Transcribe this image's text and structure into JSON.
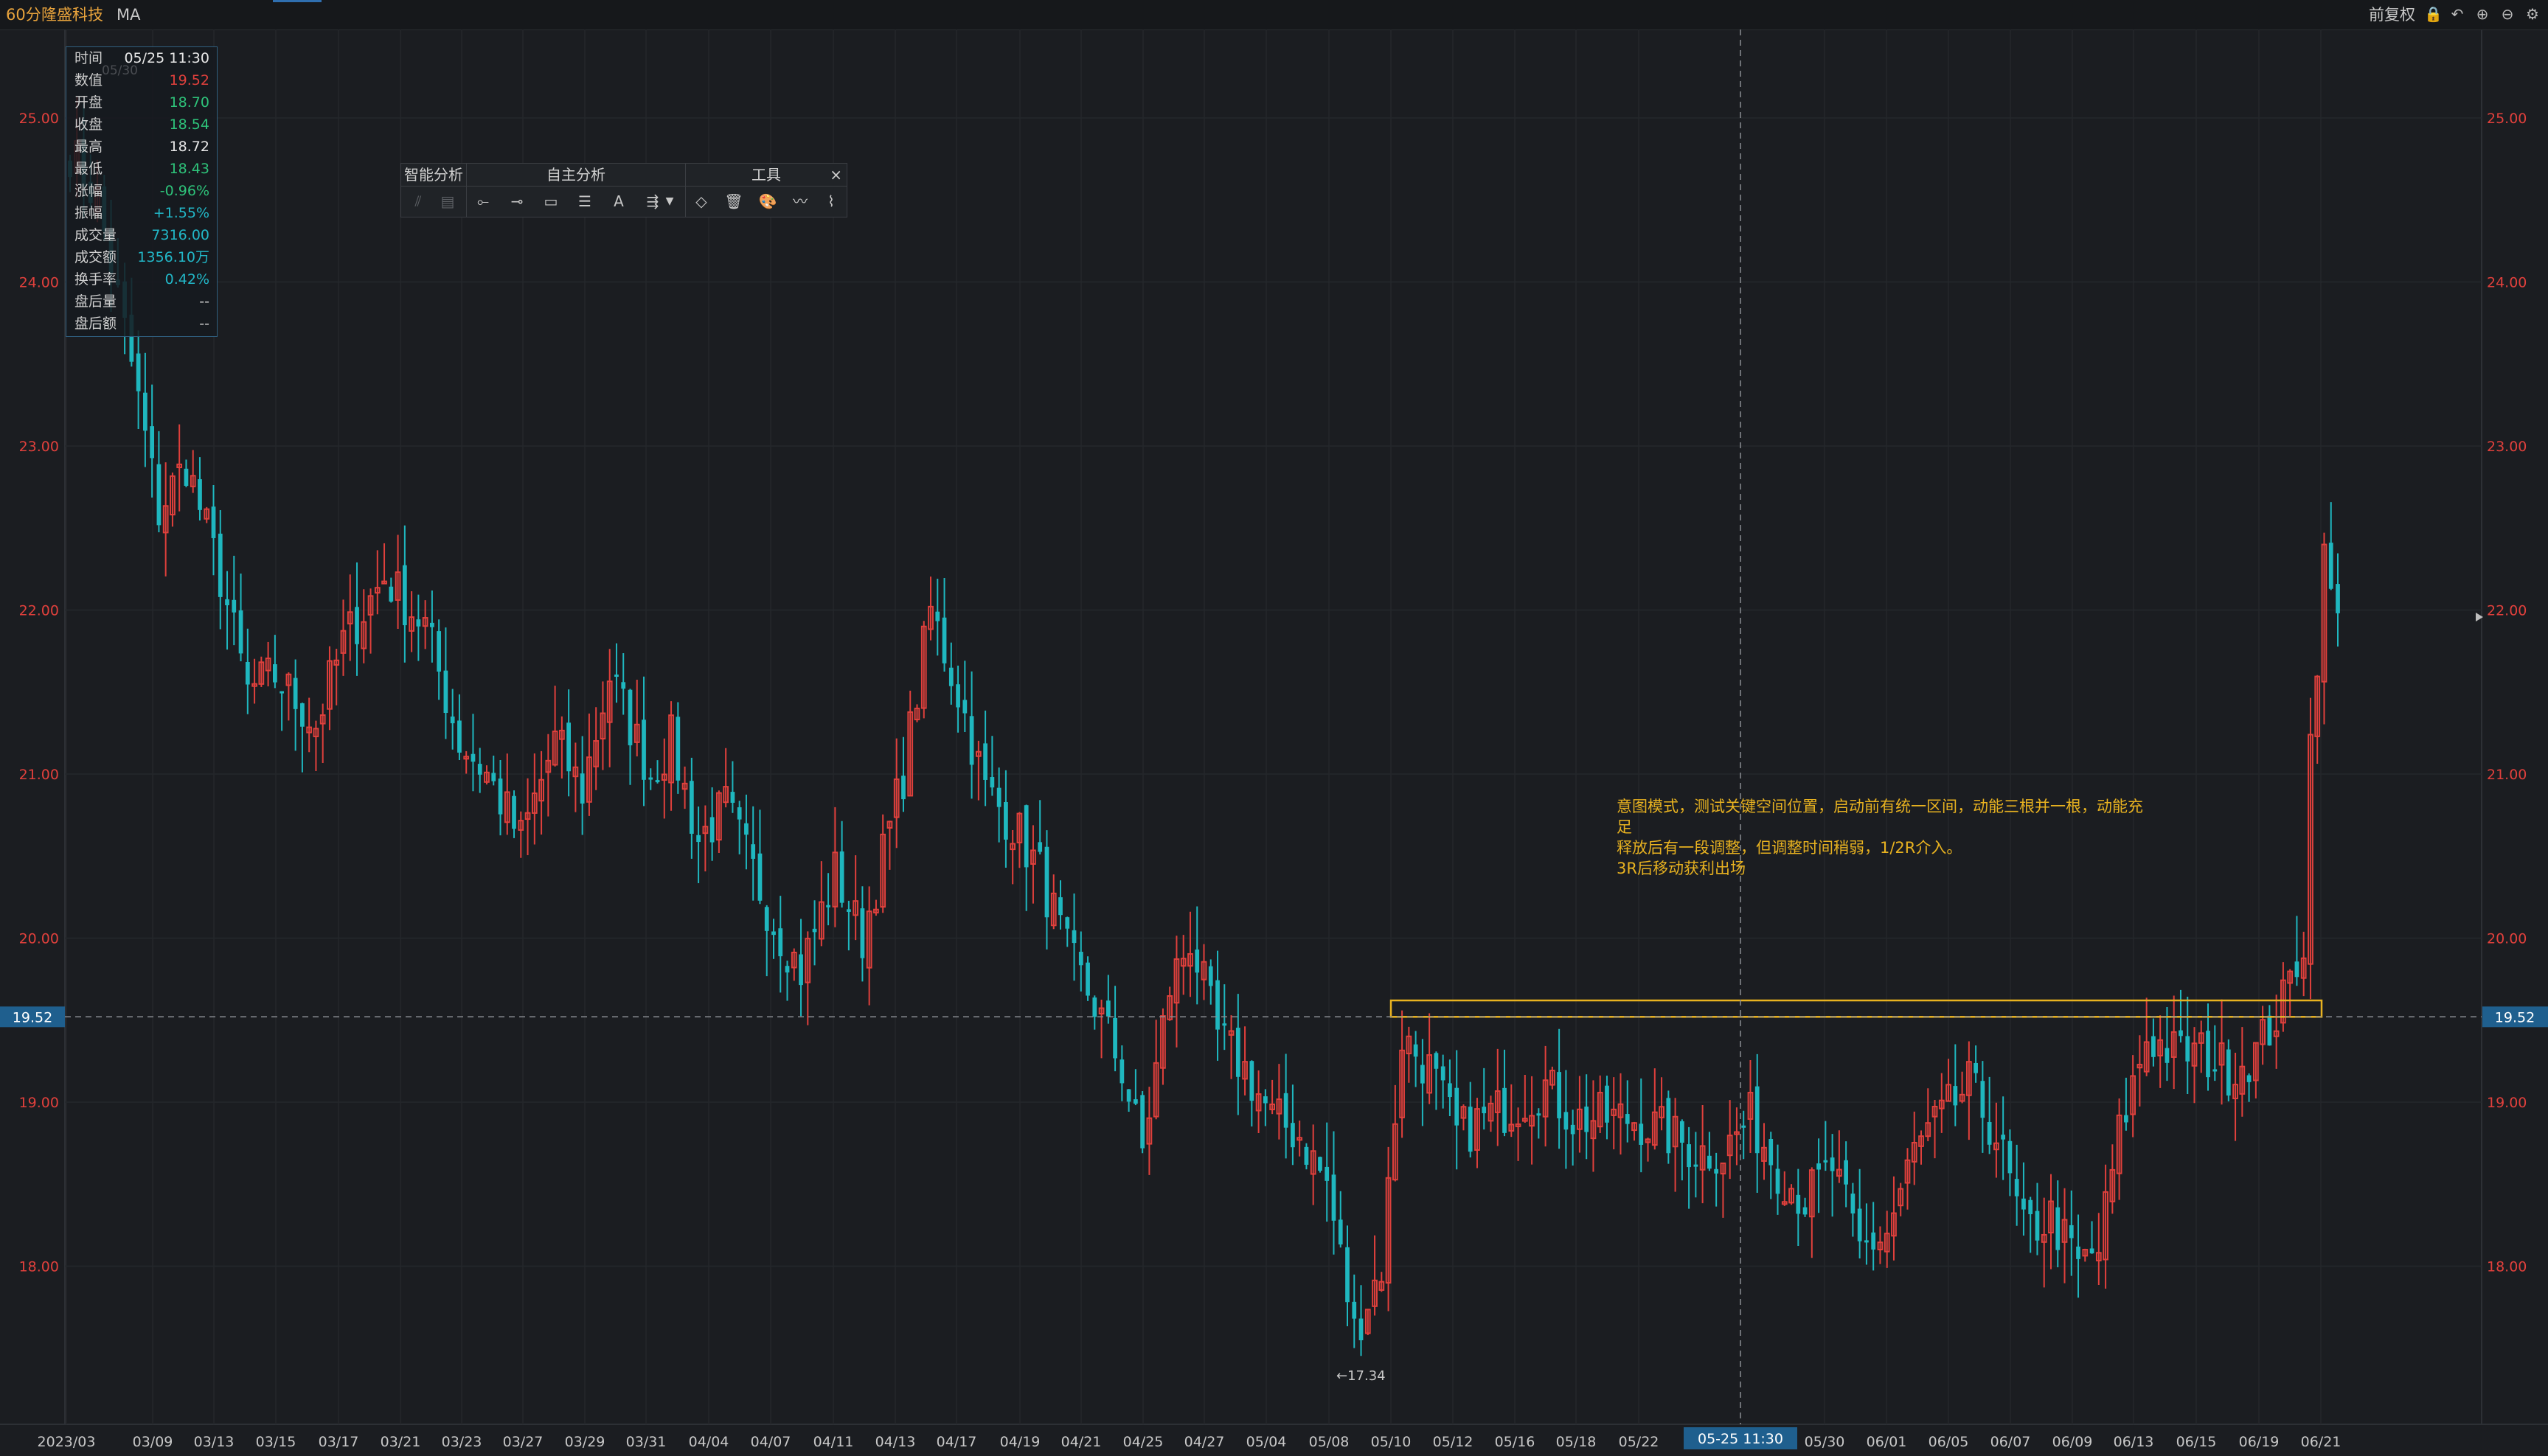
{
  "header": {
    "interval": "60分",
    "stock_name": "隆盛科技",
    "indicator": "MA",
    "fq_mode": "前复权",
    "icons": [
      "lock-icon",
      "undo-icon",
      "zoom-in-icon",
      "zoom-out-icon",
      "gear-icon"
    ]
  },
  "info_panel": {
    "rows": [
      {
        "label": "时间",
        "value": "05/25 11:30",
        "color": "#e8e8e8"
      },
      {
        "label": "数值",
        "value": "19.52",
        "color": "#e0403c"
      },
      {
        "label": "开盘",
        "value": "18.70",
        "color": "#2ec37a"
      },
      {
        "label": "收盘",
        "value": "18.54",
        "color": "#2ec37a"
      },
      {
        "label": "最高",
        "value": "18.72",
        "color": "#e8e8e8"
      },
      {
        "label": "最低",
        "value": "18.43",
        "color": "#2ec37a"
      },
      {
        "label": "涨幅",
        "value": "-0.96%",
        "color": "#2ec37a"
      },
      {
        "label": "振幅",
        "value": "+1.55%",
        "color": "#22b8c8"
      },
      {
        "label": "成交量",
        "value": "7316.00",
        "color": "#22b8c8"
      },
      {
        "label": "成交额",
        "value": "1356.10万",
        "color": "#22b8c8"
      },
      {
        "label": "换手率",
        "value": "0.42%",
        "color": "#22b8c8"
      },
      {
        "label": "盘后量",
        "value": "--",
        "color": "#cfcfcf"
      },
      {
        "label": "盘后额",
        "value": "--",
        "color": "#cfcfcf"
      }
    ],
    "ghost": "05/30"
  },
  "toolbar": {
    "groups": [
      {
        "title": "智能分析"
      },
      {
        "title": "自主分析"
      },
      {
        "title": "工具"
      }
    ],
    "close": "×"
  },
  "annotation": {
    "lines": [
      "意图模式，测试关键空间位置，启动前有统一区间，动能三根并一根，动能充",
      "足",
      "释放后有一段调整，但调整时间稍弱，1/2R介入。",
      "3R后移动获利出场"
    ]
  },
  "chart_data": {
    "type": "candlestick",
    "y_ticks": [
      "25.00",
      "24.00",
      "23.00",
      "22.00",
      "21.00",
      "20.00",
      "19.00",
      "18.00"
    ],
    "x_ticks": [
      "2023/03",
      "03/09",
      "03/13",
      "03/15",
      "03/17",
      "03/21",
      "03/23",
      "03/27",
      "03/29",
      "03/31",
      "04/04",
      "04/07",
      "04/11",
      "04/13",
      "04/17",
      "04/19",
      "04/21",
      "04/25",
      "04/27",
      "05/04",
      "05/08",
      "05/10",
      "05/12",
      "05/16",
      "05/18",
      "05/22",
      "05/30",
      "06/01",
      "06/05",
      "06/07",
      "06/09",
      "06/13",
      "06/15",
      "06/19",
      "06/21"
    ],
    "ylim": [
      17.0,
      25.5
    ],
    "crosshair": {
      "price": "19.52",
      "time": "05-25 11:30"
    },
    "low_marker": "←17.34",
    "zone": [
      19.52,
      19.62
    ],
    "up_color": "#e0403c",
    "down_color": "#1fb7bf",
    "anchors": [
      [
        0,
        24.8
      ],
      [
        4,
        24.5
      ],
      [
        9,
        23.5
      ],
      [
        13,
        22.6
      ],
      [
        17,
        22.9
      ],
      [
        22,
        22.2
      ],
      [
        26,
        21.5
      ],
      [
        30,
        21.6
      ],
      [
        36,
        21.3
      ],
      [
        40,
        21.8
      ],
      [
        46,
        22.2
      ],
      [
        52,
        21.9
      ],
      [
        57,
        21.2
      ],
      [
        61,
        21.0
      ],
      [
        66,
        20.6
      ],
      [
        71,
        21.2
      ],
      [
        75,
        20.9
      ],
      [
        79,
        21.6
      ],
      [
        85,
        21.0
      ],
      [
        88,
        21.2
      ],
      [
        92,
        20.6
      ],
      [
        96,
        20.8
      ],
      [
        99,
        20.5
      ],
      [
        103,
        20.1
      ],
      [
        107,
        19.8
      ],
      [
        112,
        20.4
      ],
      [
        116,
        20.0
      ],
      [
        122,
        21.0
      ],
      [
        126,
        22.0
      ],
      [
        130,
        21.5
      ],
      [
        134,
        20.9
      ],
      [
        138,
        20.7
      ],
      [
        142,
        20.4
      ],
      [
        146,
        19.9
      ],
      [
        150,
        19.6
      ],
      [
        154,
        19.2
      ],
      [
        157,
        18.7
      ],
      [
        161,
        19.7
      ],
      [
        164,
        20.0
      ],
      [
        168,
        19.4
      ],
      [
        172,
        19.2
      ],
      [
        176,
        18.9
      ],
      [
        180,
        18.8
      ],
      [
        184,
        18.5
      ],
      [
        188,
        17.6
      ],
      [
        192,
        18.0
      ],
      [
        195,
        19.4
      ],
      [
        199,
        19.2
      ],
      [
        203,
        18.8
      ],
      [
        207,
        18.9
      ],
      [
        212,
        19.0
      ],
      [
        216,
        19.1
      ],
      [
        220,
        18.9
      ],
      [
        225,
        18.9
      ],
      [
        229,
        18.9
      ],
      [
        234,
        18.8
      ],
      [
        238,
        18.7
      ],
      [
        242,
        18.7
      ],
      [
        246,
        18.9
      ],
      [
        250,
        18.6
      ],
      [
        254,
        18.4
      ],
      [
        258,
        18.6
      ],
      [
        262,
        18.1
      ],
      [
        266,
        18.2
      ],
      [
        270,
        18.7
      ],
      [
        274,
        18.9
      ],
      [
        278,
        19.1
      ],
      [
        282,
        18.8
      ],
      [
        286,
        18.2
      ],
      [
        290,
        18.3
      ],
      [
        294,
        18.0
      ],
      [
        297,
        18.1
      ],
      [
        300,
        18.8
      ],
      [
        304,
        19.4
      ],
      [
        308,
        19.3
      ],
      [
        312,
        19.3
      ],
      [
        316,
        19.2
      ],
      [
        320,
        19.3
      ],
      [
        324,
        19.6
      ],
      [
        327,
        20.0
      ],
      [
        328,
        21.2
      ],
      [
        330,
        22.3
      ],
      [
        332,
        21.9
      ]
    ]
  }
}
